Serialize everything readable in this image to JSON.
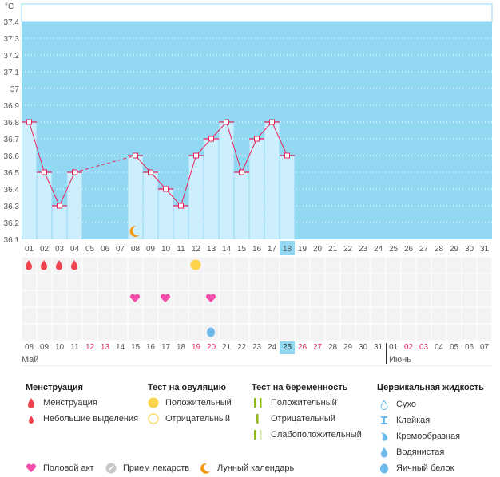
{
  "chart_data": {
    "type": "bar",
    "title": "",
    "ylabel": "°C",
    "ylim": [
      36.1,
      37.4
    ],
    "y_ticks": [
      "37.4",
      "37.3",
      "37.2",
      "37.1",
      "37",
      "36.9",
      "36.8",
      "36.7",
      "36.6",
      "36.5",
      "36.4",
      "36.3",
      "36.2",
      "36.1"
    ],
    "categories": [
      "01",
      "02",
      "03",
      "04",
      "05",
      "06",
      "07",
      "08",
      "09",
      "10",
      "11",
      "12",
      "13",
      "14",
      "15",
      "16",
      "17",
      "18",
      "19",
      "20",
      "21",
      "22",
      "23",
      "24",
      "25",
      "26",
      "27",
      "28",
      "29",
      "30",
      "31"
    ],
    "values": [
      36.8,
      36.5,
      36.3,
      36.5,
      null,
      null,
      null,
      36.6,
      36.5,
      36.4,
      36.3,
      36.6,
      36.7,
      36.8,
      36.5,
      36.7,
      36.8,
      36.6,
      null,
      null,
      null,
      null,
      null,
      null,
      null,
      null,
      null,
      null,
      null,
      null,
      null
    ],
    "highlight_day": "18",
    "moon_day": "08",
    "colors": {
      "bg": "#92d8f2",
      "bar": "#cdeefc",
      "line": "#e8235a"
    }
  },
  "calendar": {
    "dates": [
      {
        "d": "08",
        "red": false
      },
      {
        "d": "09",
        "red": false
      },
      {
        "d": "10",
        "red": false
      },
      {
        "d": "11",
        "red": false
      },
      {
        "d": "12",
        "red": true
      },
      {
        "d": "13",
        "red": true
      },
      {
        "d": "14",
        "red": false
      },
      {
        "d": "15",
        "red": false
      },
      {
        "d": "16",
        "red": false
      },
      {
        "d": "17",
        "red": false
      },
      {
        "d": "18",
        "red": false
      },
      {
        "d": "19",
        "red": true
      },
      {
        "d": "20",
        "red": true
      },
      {
        "d": "21",
        "red": false
      },
      {
        "d": "22",
        "red": false
      },
      {
        "d": "23",
        "red": false
      },
      {
        "d": "24",
        "red": false
      },
      {
        "d": "25",
        "red": false,
        "today": true
      },
      {
        "d": "26",
        "red": true
      },
      {
        "d": "27",
        "red": true
      },
      {
        "d": "28",
        "red": false
      },
      {
        "d": "29",
        "red": false
      },
      {
        "d": "30",
        "red": false
      },
      {
        "d": "31",
        "red": false
      },
      {
        "d": "01",
        "red": false
      },
      {
        "d": "02",
        "red": true
      },
      {
        "d": "03",
        "red": true
      },
      {
        "d": "04",
        "red": false
      },
      {
        "d": "05",
        "red": false
      },
      {
        "d": "06",
        "red": false
      },
      {
        "d": "07",
        "red": false
      }
    ],
    "month1": "Май",
    "month2": "Июнь",
    "menstruation_cols": [
      0,
      1,
      2,
      3
    ],
    "ovulation_positive_col": 11,
    "intercourse_cols": [
      7,
      9,
      12
    ],
    "cervical_egg_white_col": 12
  },
  "legend": {
    "menstruation": {
      "title": "Менструация",
      "items": [
        "Менструация",
        "Небольшие выделения"
      ]
    },
    "ovulation": {
      "title": "Тест на овуляцию",
      "items": [
        "Положительный",
        "Отрицательный"
      ]
    },
    "pregnancy": {
      "title": "Тест на беременность",
      "items": [
        "Положительный",
        "Отрицательный",
        "Слабоположительный"
      ]
    },
    "cervical": {
      "title": "Цервикальная жидкость",
      "items": [
        "Сухо",
        "Клейкая",
        "Кремообразная",
        "Водянистая",
        "Яичный белок"
      ]
    },
    "bottom": [
      "Половой акт",
      "Прием лекарств",
      "Лунный календарь"
    ]
  }
}
